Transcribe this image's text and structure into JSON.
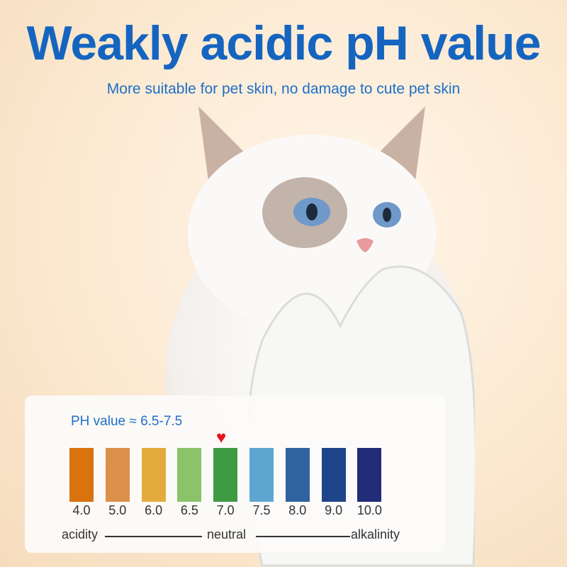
{
  "header": {
    "title": "Weakly acidic pH value",
    "subtitle": "More suitable for pet skin, no damage to cute pet skin"
  },
  "scale": {
    "label": "PH value ≈ 6.5-7.5",
    "marker_icon": "heart-icon",
    "marker_value": "7.0",
    "levels": [
      {
        "value": "4.0",
        "color": "#d8730f"
      },
      {
        "value": "5.0",
        "color": "#dc914a"
      },
      {
        "value": "6.0",
        "color": "#e3ab3e"
      },
      {
        "value": "6.5",
        "color": "#8bc26a"
      },
      {
        "value": "7.0",
        "color": "#3f9b42"
      },
      {
        "value": "7.5",
        "color": "#5ea6d2"
      },
      {
        "value": "8.0",
        "color": "#2f63a0"
      },
      {
        "value": "9.0",
        "color": "#1e4489"
      },
      {
        "value": "10.0",
        "color": "#232c78"
      }
    ],
    "axis": {
      "left": "acidity",
      "middle": "neutral",
      "right": "alkalinity"
    }
  }
}
